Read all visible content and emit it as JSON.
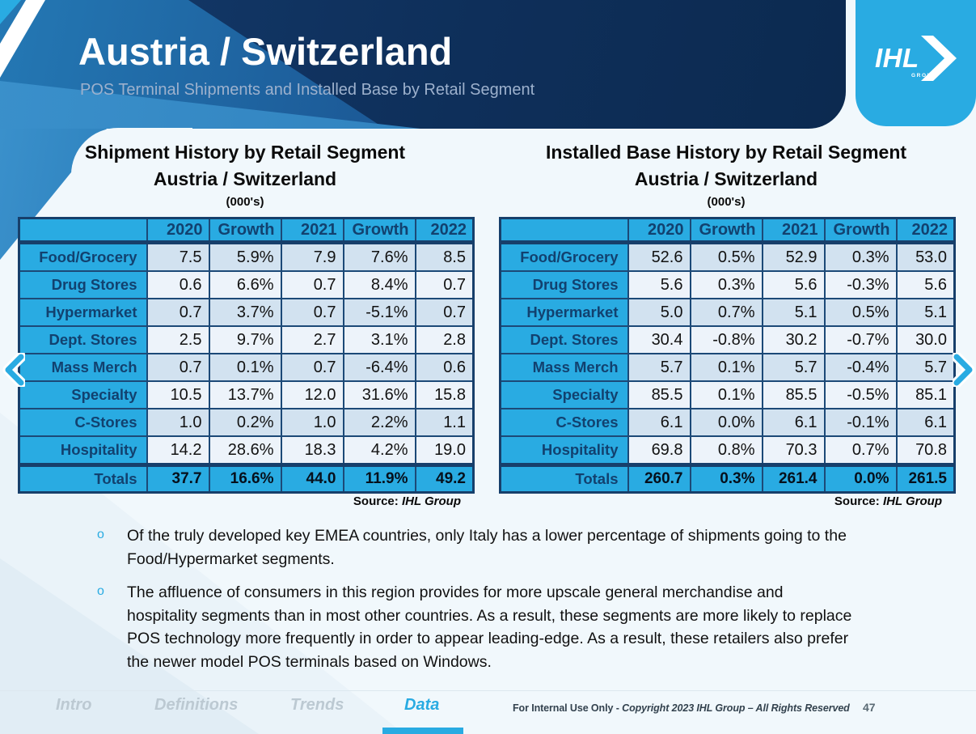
{
  "header": {
    "title": "Austria / Switzerland",
    "subtitle": "POS Terminal Shipments and Installed Base by Retail Segment"
  },
  "logo": {
    "text": "IHL",
    "sub": "GROUP"
  },
  "accent_color": "#29abe2",
  "chart_data": [
    {
      "type": "table",
      "title": "Shipment History by Retail Segment",
      "subtitle": "Austria / Switzerland",
      "units": "(000's)",
      "columns": [
        "",
        "2020",
        "Growth",
        "2021",
        "Growth",
        "2022"
      ],
      "rows": [
        {
          "label": "Food/Grocery",
          "cells": [
            "7.5",
            "5.9%",
            "7.9",
            "7.6%",
            "8.5"
          ]
        },
        {
          "label": "Drug Stores",
          "cells": [
            "0.6",
            "6.6%",
            "0.7",
            "8.4%",
            "0.7"
          ]
        },
        {
          "label": "Hypermarket",
          "cells": [
            "0.7",
            "3.7%",
            "0.7",
            "-5.1%",
            "0.7"
          ]
        },
        {
          "label": "Dept. Stores",
          "cells": [
            "2.5",
            "9.7%",
            "2.7",
            "3.1%",
            "2.8"
          ]
        },
        {
          "label": "Mass Merch",
          "cells": [
            "0.7",
            "0.1%",
            "0.7",
            "-6.4%",
            "0.6"
          ]
        },
        {
          "label": "Specialty",
          "cells": [
            "10.5",
            "13.7%",
            "12.0",
            "31.6%",
            "15.8"
          ]
        },
        {
          "label": "C-Stores",
          "cells": [
            "1.0",
            "0.2%",
            "1.0",
            "2.2%",
            "1.1"
          ]
        },
        {
          "label": "Hospitality",
          "cells": [
            "14.2",
            "28.6%",
            "18.3",
            "4.2%",
            "19.0"
          ]
        }
      ],
      "totals": {
        "label": "Totals",
        "cells": [
          "37.7",
          "16.6%",
          "44.0",
          "11.9%",
          "49.2"
        ]
      },
      "source_prefix": "Source:",
      "source_value": "IHL Group"
    },
    {
      "type": "table",
      "title": "Installed Base History by Retail Segment",
      "subtitle": "Austria / Switzerland",
      "units": "(000's)",
      "columns": [
        "",
        "2020",
        "Growth",
        "2021",
        "Growth",
        "2022"
      ],
      "rows": [
        {
          "label": "Food/Grocery",
          "cells": [
            "52.6",
            "0.5%",
            "52.9",
            "0.3%",
            "53.0"
          ]
        },
        {
          "label": "Drug Stores",
          "cells": [
            "5.6",
            "0.3%",
            "5.6",
            "-0.3%",
            "5.6"
          ]
        },
        {
          "label": "Hypermarket",
          "cells": [
            "5.0",
            "0.7%",
            "5.1",
            "0.5%",
            "5.1"
          ]
        },
        {
          "label": "Dept. Stores",
          "cells": [
            "30.4",
            "-0.8%",
            "30.2",
            "-0.7%",
            "30.0"
          ]
        },
        {
          "label": "Mass Merch",
          "cells": [
            "5.7",
            "0.1%",
            "5.7",
            "-0.4%",
            "5.7"
          ]
        },
        {
          "label": "Specialty",
          "cells": [
            "85.5",
            "0.1%",
            "85.5",
            "-0.5%",
            "85.1"
          ]
        },
        {
          "label": "C-Stores",
          "cells": [
            "6.1",
            "0.0%",
            "6.1",
            "-0.1%",
            "6.1"
          ]
        },
        {
          "label": "Hospitality",
          "cells": [
            "69.8",
            "0.8%",
            "70.3",
            "0.7%",
            "70.8"
          ]
        }
      ],
      "totals": {
        "label": "Totals",
        "cells": [
          "260.7",
          "0.3%",
          "261.4",
          "0.0%",
          "261.5"
        ]
      },
      "source_prefix": "Source:",
      "source_value": "IHL Group"
    }
  ],
  "bullets": [
    "Of the truly developed key EMEA countries, only Italy has a lower percentage of shipments going to the\nFood/Hypermarket segments.",
    "The affluence of consumers in this region provides for more upscale general merchandise and\nhospitality segments than in most other countries. As a result, these segments are more likely to replace\nPOS technology more frequently in order to appear leading-edge. As a result, these retailers also prefer\nthe newer model POS terminals based on Windows."
  ],
  "footer": {
    "nav": [
      {
        "label": "Intro",
        "active": false
      },
      {
        "label": "Definitions",
        "active": false
      },
      {
        "label": "Trends",
        "active": false
      },
      {
        "label": "Data",
        "active": true
      }
    ],
    "notice": "For Internal Use Only -",
    "copyright": "Copyright 2023 IHL Group – All Rights Reserved",
    "page": "47"
  }
}
